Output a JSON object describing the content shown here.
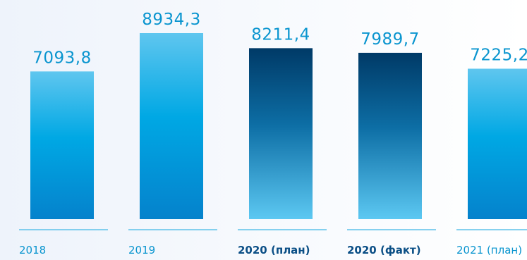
{
  "chart_data": {
    "type": "bar",
    "categories": [
      "2018",
      "2019",
      "2020 (план)",
      "2020 (факт)",
      "2021 (план)"
    ],
    "value_labels": [
      "7093,8",
      "8934,3",
      "8211,4",
      "7989,7",
      "7225,2"
    ],
    "values": [
      7093.8,
      8934.3,
      8211.4,
      7989.7,
      7225.2
    ],
    "bold_categories": [
      false,
      false,
      true,
      true,
      false
    ],
    "bar_styles": [
      "light",
      "light",
      "dark",
      "dark",
      "light"
    ],
    "ylim": [
      0,
      9500
    ],
    "grid": false,
    "colors": {
      "light_top": "#5fc6ef",
      "light_mid": "#00a8e4",
      "light_bottom": "#0582cc",
      "dark_top": "#003a67",
      "dark_mid": "#0d6ea5",
      "dark_bottom": "#5cc8f2",
      "label": "#0a95cf",
      "label_bold": "#0b4f86",
      "underline": "#5ec2ea"
    }
  }
}
